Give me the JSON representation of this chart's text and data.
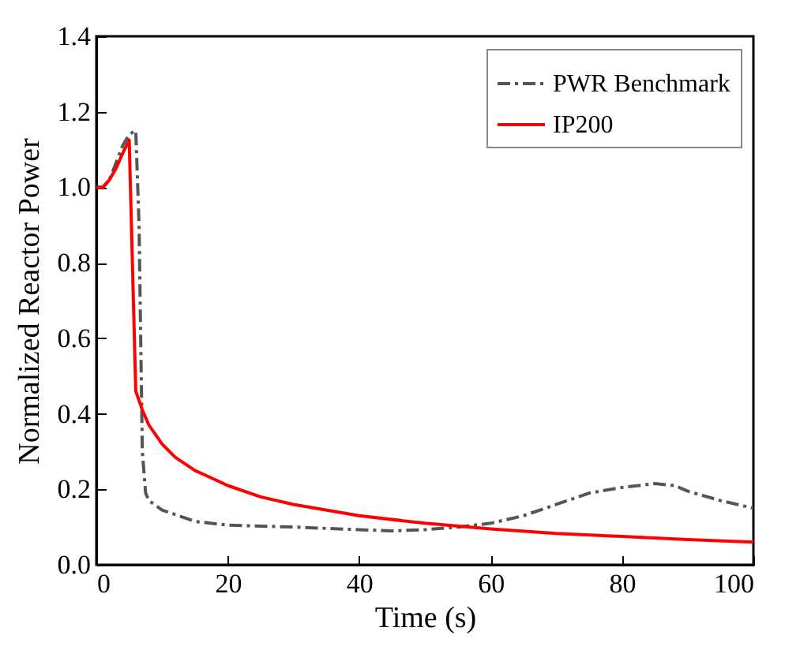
{
  "chart_data": {
    "type": "line",
    "xlabel": "Time (s)",
    "ylabel": "Normalized Reactor Power",
    "xlim": [
      0,
      100
    ],
    "xticks": [
      0,
      20,
      40,
      60,
      80,
      100
    ],
    "ylim": [
      0,
      1.4
    ],
    "yticks": [
      {
        "value": 0,
        "label": "0.0"
      },
      0.2,
      0.4,
      0.6,
      0.8,
      {
        "value": 1,
        "label": "1.0"
      },
      1.2,
      1.4
    ],
    "grid": false,
    "legend": "top right",
    "marker": "none",
    "series": [
      {
        "name": "PWR Benchmark",
        "color": "#555555",
        "line_style": "dashed",
        "x": [
          0,
          1,
          2,
          4,
          5,
          6,
          6.5,
          7,
          7.5,
          8,
          10,
          15,
          20,
          30,
          40,
          45,
          50,
          55,
          60,
          65,
          70,
          75,
          80,
          85,
          88,
          90,
          95,
          100
        ],
        "values": [
          1.0,
          1.0,
          1.02,
          1.11,
          1.14,
          1.15,
          0.9,
          0.3,
          0.19,
          0.17,
          0.145,
          0.115,
          0.105,
          0.1,
          0.093,
          0.09,
          0.093,
          0.1,
          0.11,
          0.13,
          0.16,
          0.19,
          0.205,
          0.215,
          0.21,
          0.195,
          0.17,
          0.15
        ]
      },
      {
        "name": "IP200",
        "color": "#ff0000",
        "line_style": "solid",
        "x": [
          0,
          1,
          2,
          3,
          4,
          5,
          6,
          7,
          8,
          10,
          12,
          15,
          20,
          25,
          30,
          40,
          50,
          60,
          70,
          80,
          90,
          100
        ],
        "values": [
          1.0,
          1.0,
          1.02,
          1.05,
          1.09,
          1.125,
          0.46,
          0.41,
          0.37,
          0.32,
          0.285,
          0.25,
          0.21,
          0.18,
          0.16,
          0.13,
          0.11,
          0.095,
          0.083,
          0.075,
          0.067,
          0.06
        ]
      }
    ]
  }
}
